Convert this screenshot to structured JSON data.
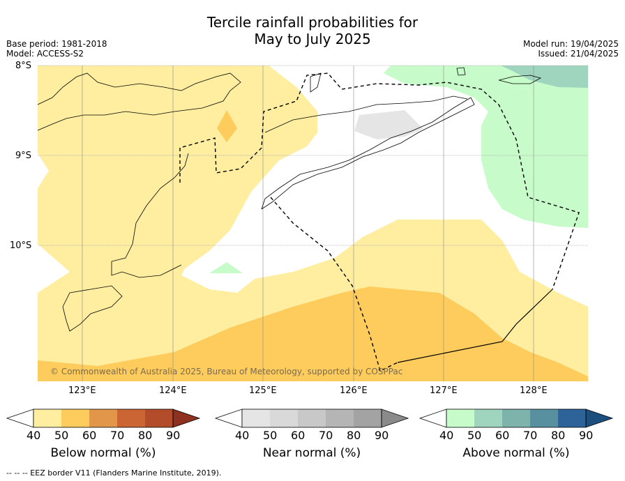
{
  "title_line1": "Tercile rainfall probabilities for",
  "title_line2": "May to July 2025",
  "meta_left": {
    "base_period": "Base period: 1981-2018",
    "model": "Model: ACCESS-S2"
  },
  "meta_right": {
    "model_run": "Model run: 19/04/2025",
    "issued": "Issued: 21/04/2025"
  },
  "lat_labels": [
    "8°S",
    "9°S",
    "10°S"
  ],
  "lon_labels": [
    "123°E",
    "124°E",
    "125°E",
    "126°E",
    "127°E",
    "128°E"
  ],
  "copyright": "© Commonwealth of Australia 2025, Bureau of Meteorology, supported by COSPPac",
  "colorbars": {
    "below": {
      "label": "Below normal (%)",
      "ticks": [
        "40",
        "50",
        "60",
        "70",
        "80",
        "90"
      ],
      "colors": [
        "#ffeda0",
        "#fecc5c",
        "#e2964a",
        "#cc6534",
        "#b24c2b",
        "#8f3121"
      ]
    },
    "near": {
      "label": "Near normal (%)",
      "ticks": [
        "40",
        "50",
        "60",
        "70",
        "80",
        "90"
      ],
      "colors": [
        "#e5e5e5",
        "#d9d9d9",
        "#c8c8c8",
        "#b5b5b5",
        "#a3a3a3",
        "#8a8a8a"
      ]
    },
    "above": {
      "label": "Above normal (%)",
      "ticks": [
        "40",
        "50",
        "60",
        "70",
        "80",
        "90"
      ],
      "colors": [
        "#c7fcca",
        "#9fd5be",
        "#7db3ab",
        "#5890a0",
        "#2d6399",
        "#1d4f7e"
      ]
    }
  },
  "footnote": "--  --  -- EEZ border V11 (Flanders Marine Institute, 2019)."
}
